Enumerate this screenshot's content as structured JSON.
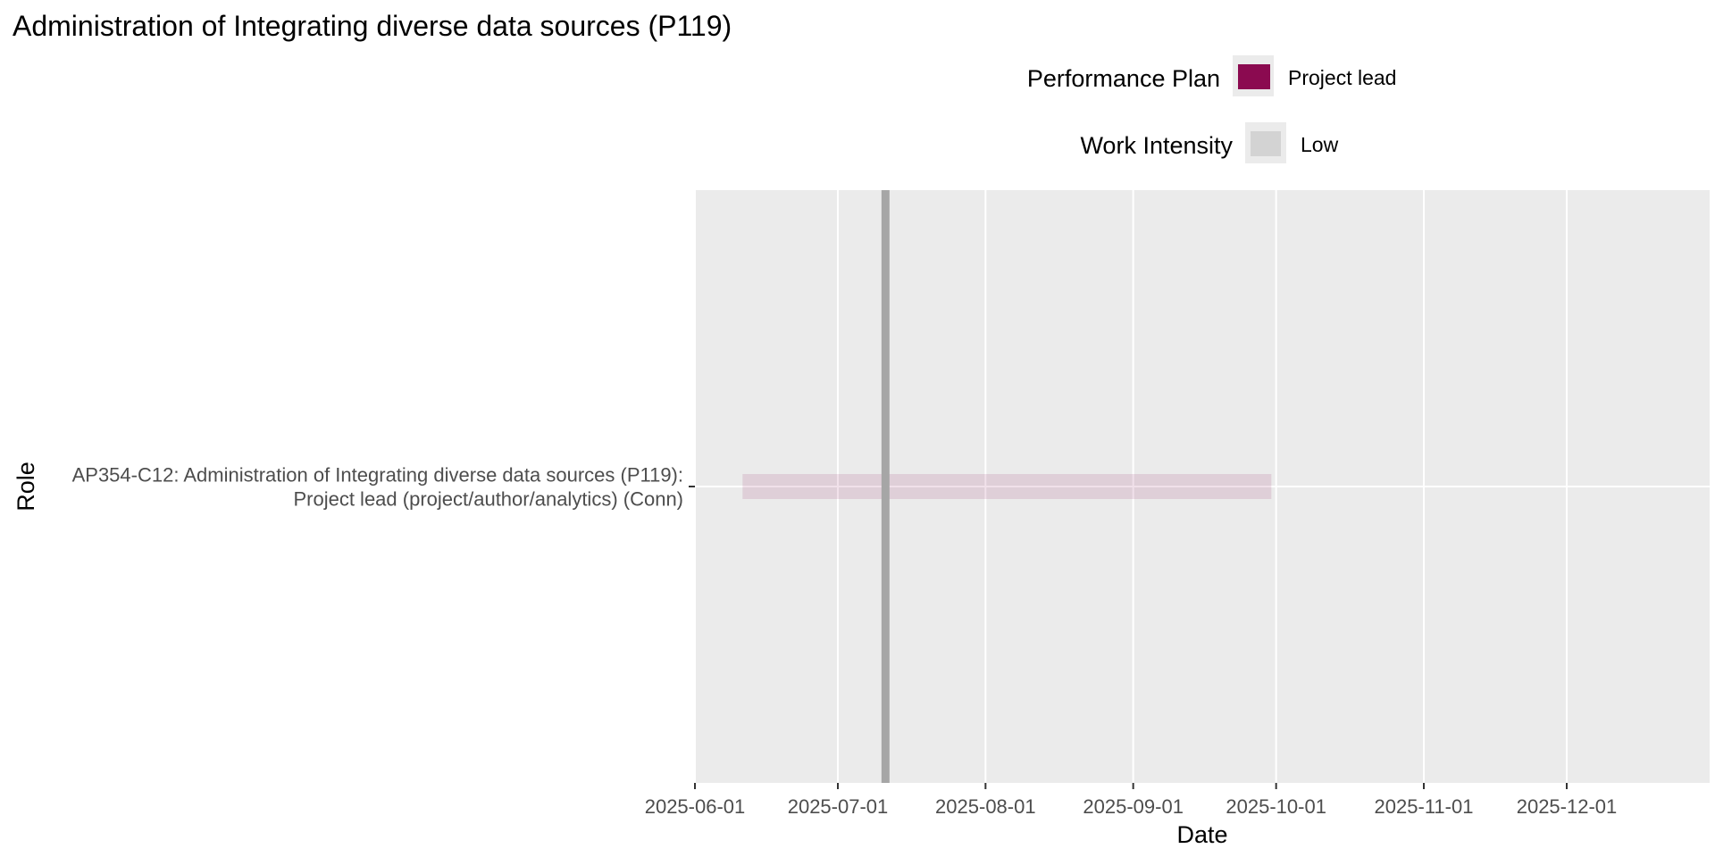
{
  "chart_data": {
    "type": "gantt",
    "title": "Administration of Integrating diverse data sources (P119)",
    "xlabel": "Date",
    "ylabel": "Role",
    "x_ticks": [
      "2025-06-01",
      "2025-07-01",
      "2025-08-01",
      "2025-09-01",
      "2025-10-01",
      "2025-11-01",
      "2025-12-01"
    ],
    "xlim": [
      "2025-06-01",
      "2025-12-31"
    ],
    "grid": true,
    "legend_placement": "top",
    "legends": [
      {
        "title": "Performance Plan",
        "items": [
          {
            "label": "Project lead",
            "color": "#8B0A50"
          }
        ]
      },
      {
        "title": "Work Intensity",
        "items": [
          {
            "label": "Low",
            "color": "#d3d3d3"
          }
        ]
      }
    ],
    "categories": [
      [
        "AP354-C12: Administration of Integrating diverse data sources (P119):",
        "Project lead (project/author/analytics) (Conn)"
      ]
    ],
    "bars": [
      {
        "category_index": 0,
        "start": "2025-06-11",
        "end": "2025-09-30",
        "plan": "Project lead",
        "intensity": "Low",
        "color": "#8B0A50",
        "opacity": 0.12
      }
    ],
    "reference_line": {
      "date": "2025-07-11",
      "color": "#a6a6a6"
    },
    "colors": {
      "panel": "#ebebeb",
      "grid": "#ffffff",
      "tick_text": "#4d4d4d"
    }
  }
}
